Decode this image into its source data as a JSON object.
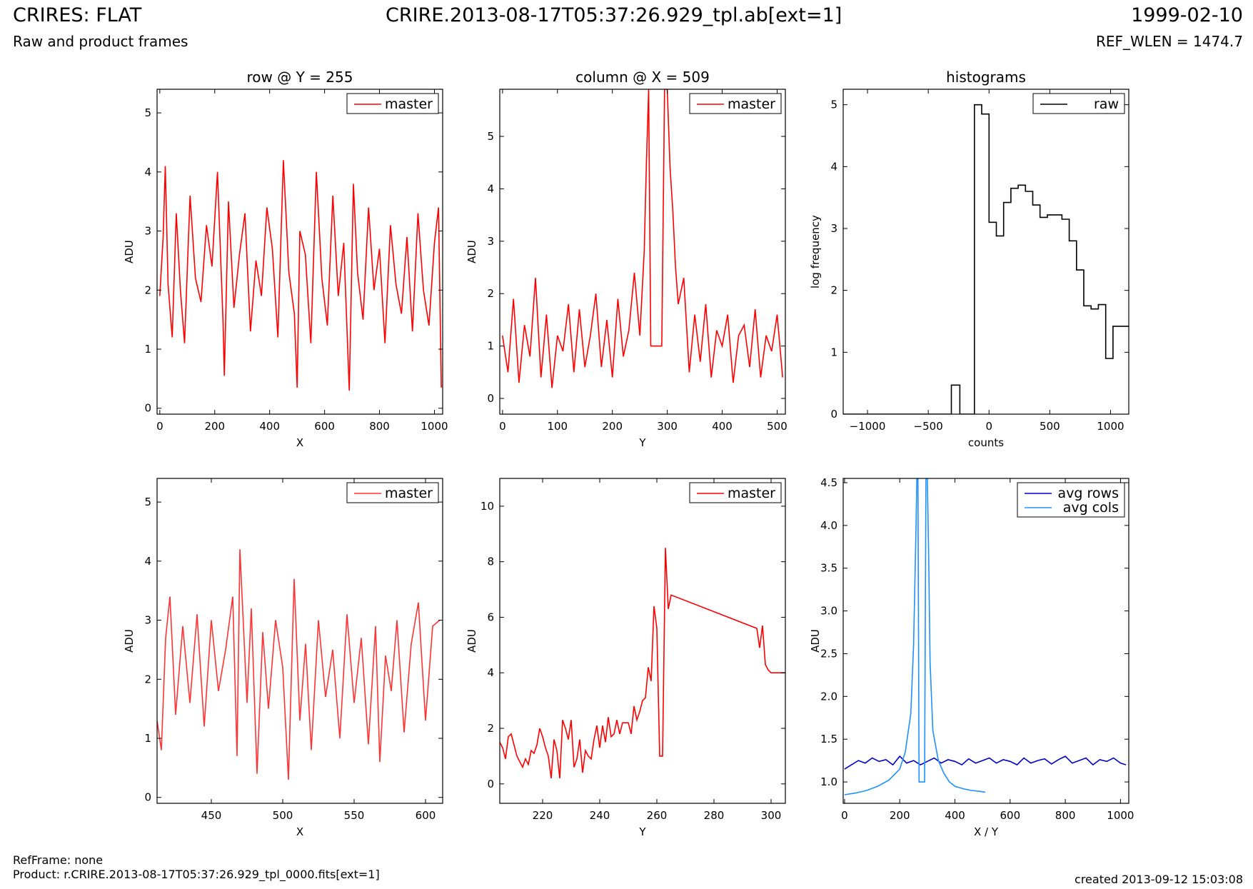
{
  "header": {
    "title_left": "CRIRES: FLAT",
    "subtitle_left": "Raw and product frames",
    "title_center": "CRIRE.2013-08-17T05:37:26.929_tpl.ab[ext=1]",
    "title_right": "1999-02-10",
    "subtitle_right": "REF_WLEN = 1474.7"
  },
  "footer": {
    "ref_frame": "RefFrame: none",
    "product": "Product: r.CRIRE.2013-08-17T05:37:26.929_tpl_0000.fits[ext=1]",
    "created": "created 2013-09-12 15:03:08"
  },
  "chart_data": [
    {
      "id": "row-full",
      "type": "line",
      "title": "row @ Y = 255",
      "xlabel": "X",
      "ylabel": "ADU",
      "xlim": [
        -10,
        1030
      ],
      "ylim": [
        -0.1,
        5.4
      ],
      "xticks": [
        0,
        200,
        400,
        600,
        800,
        1000
      ],
      "yticks": [
        0,
        1,
        2,
        3,
        4,
        5
      ],
      "legend": "top-right",
      "series": [
        {
          "name": "master",
          "color": "#ff0000",
          "x": [
            0,
            12,
            20,
            30,
            45,
            60,
            75,
            90,
            110,
            130,
            150,
            170,
            190,
            210,
            230,
            235,
            250,
            270,
            290,
            310,
            330,
            350,
            370,
            390,
            410,
            430,
            450,
            470,
            490,
            500,
            510,
            530,
            550,
            570,
            590,
            610,
            630,
            650,
            670,
            690,
            705,
            720,
            740,
            760,
            780,
            800,
            820,
            840,
            860,
            880,
            900,
            920,
            940,
            960,
            980,
            1000,
            1015,
            1025
          ],
          "y": [
            1.9,
            2.9,
            4.1,
            2.1,
            1.2,
            3.3,
            2.0,
            1.1,
            3.6,
            2.2,
            1.8,
            3.1,
            2.4,
            4.0,
            1.5,
            0.55,
            3.5,
            1.7,
            2.6,
            3.3,
            1.3,
            2.5,
            1.9,
            3.4,
            2.7,
            1.2,
            4.2,
            2.3,
            1.6,
            0.35,
            3.0,
            2.6,
            1.1,
            4.0,
            2.2,
            1.4,
            3.6,
            1.9,
            2.8,
            0.3,
            3.8,
            2.3,
            1.5,
            3.4,
            2.0,
            2.7,
            1.1,
            3.1,
            2.1,
            1.6,
            2.9,
            1.3,
            3.3,
            2.0,
            1.4,
            2.8,
            3.4,
            0.35
          ]
        }
      ]
    },
    {
      "id": "col-full",
      "type": "line",
      "title": "column @ X = 509",
      "xlabel": "Y",
      "ylabel": "ADU",
      "xlim": [
        -5,
        515
      ],
      "ylim": [
        -0.3,
        5.9
      ],
      "xticks": [
        0,
        100,
        200,
        300,
        400,
        500
      ],
      "yticks": [
        0,
        1,
        2,
        3,
        4,
        5
      ],
      "legend": "top-right",
      "series": [
        {
          "name": "master",
          "color": "#ff0000",
          "x": [
            0,
            10,
            20,
            30,
            40,
            50,
            60,
            70,
            80,
            90,
            100,
            110,
            120,
            130,
            140,
            150,
            160,
            170,
            180,
            190,
            200,
            210,
            220,
            230,
            240,
            250,
            258,
            262,
            266,
            270,
            275,
            280,
            285,
            290,
            295,
            300,
            305,
            310,
            315,
            320,
            330,
            340,
            350,
            360,
            370,
            380,
            390,
            400,
            410,
            420,
            430,
            440,
            450,
            460,
            470,
            480,
            490,
            500,
            510
          ],
          "y": [
            1.2,
            0.5,
            1.9,
            0.3,
            1.4,
            0.8,
            2.3,
            0.4,
            1.6,
            0.2,
            1.2,
            0.9,
            1.8,
            0.5,
            1.7,
            0.6,
            1.2,
            2.0,
            0.6,
            1.5,
            0.4,
            1.9,
            0.8,
            1.3,
            2.4,
            1.2,
            2.8,
            4.5,
            5.9,
            1.0,
            1.0,
            1.0,
            1.0,
            1.0,
            5.9,
            5.9,
            4.4,
            3.6,
            2.5,
            1.8,
            2.3,
            0.5,
            1.6,
            0.7,
            1.8,
            0.4,
            1.3,
            1.0,
            1.6,
            0.3,
            1.2,
            1.4,
            0.6,
            1.7,
            0.4,
            1.2,
            0.9,
            1.6,
            0.4
          ]
        }
      ]
    },
    {
      "id": "histograms",
      "type": "line",
      "title": "histograms",
      "xlabel": "counts",
      "ylabel": "log frequency",
      "xlim": [
        -1200,
        1150
      ],
      "ylim": [
        0,
        5.25
      ],
      "xticks": [
        -1000,
        -500,
        0,
        500,
        1000
      ],
      "yticks": [
        0,
        1,
        2,
        3,
        4,
        5
      ],
      "legend": "top-right",
      "series": [
        {
          "name": "raw",
          "color": "#000000",
          "x": [
            -1200,
            -310,
            -310,
            -240,
            -240,
            -120,
            -120,
            -60,
            -60,
            0,
            0,
            60,
            60,
            120,
            120,
            180,
            180,
            240,
            240,
            300,
            300,
            360,
            360,
            420,
            420,
            480,
            480,
            540,
            540,
            600,
            600,
            660,
            660,
            720,
            720,
            780,
            780,
            840,
            840,
            900,
            900,
            960,
            960,
            1020,
            1020,
            1080,
            1080,
            1150
          ],
          "y": [
            0,
            0,
            0.47,
            0.47,
            0,
            0,
            5.0,
            5.0,
            4.85,
            4.85,
            3.1,
            3.1,
            2.88,
            2.88,
            3.42,
            3.42,
            3.65,
            3.65,
            3.7,
            3.7,
            3.6,
            3.6,
            3.38,
            3.38,
            3.18,
            3.18,
            3.22,
            3.22,
            3.22,
            3.22,
            3.15,
            3.15,
            2.8,
            2.8,
            2.33,
            2.33,
            1.75,
            1.75,
            1.7,
            1.7,
            1.77,
            1.77,
            0.9,
            0.9,
            1.42,
            1.42,
            1.42,
            1.42
          ]
        }
      ]
    },
    {
      "id": "row-zoom",
      "type": "line",
      "title": "",
      "xlabel": "X",
      "ylabel": "ADU",
      "xlim": [
        412,
        612
      ],
      "ylim": [
        -0.1,
        5.4
      ],
      "xticks": [
        450,
        500,
        550,
        600
      ],
      "yticks": [
        0,
        1,
        2,
        3,
        4,
        5
      ],
      "legend": "top-right",
      "series": [
        {
          "name": "master",
          "color": "#ff3333",
          "x": [
            412,
            415,
            418,
            421,
            425,
            430,
            435,
            440,
            445,
            450,
            455,
            460,
            465,
            468,
            470,
            475,
            478,
            482,
            486,
            490,
            495,
            500,
            504,
            508,
            512,
            516,
            520,
            525,
            530,
            535,
            540,
            545,
            550,
            555,
            560,
            565,
            568,
            572,
            576,
            580,
            585,
            590,
            595,
            600,
            605,
            610
          ],
          "y": [
            1.3,
            0.8,
            2.7,
            3.4,
            1.4,
            2.9,
            1.6,
            3.1,
            1.2,
            3.0,
            1.8,
            2.5,
            3.4,
            0.7,
            4.2,
            1.6,
            3.2,
            0.4,
            2.8,
            1.5,
            3.0,
            2.2,
            0.3,
            3.7,
            1.3,
            2.6,
            0.8,
            3.0,
            1.7,
            2.5,
            1.0,
            3.1,
            1.6,
            2.7,
            0.9,
            2.9,
            0.6,
            2.4,
            1.8,
            3.0,
            1.1,
            2.6,
            3.3,
            1.3,
            2.9,
            3.0
          ]
        }
      ]
    },
    {
      "id": "col-zoom",
      "type": "line",
      "title": "",
      "xlabel": "Y",
      "ylabel": "ADU",
      "xlim": [
        205,
        305
      ],
      "ylim": [
        -0.7,
        11
      ],
      "xticks": [
        220,
        240,
        260,
        280,
        300
      ],
      "yticks": [
        0,
        2,
        4,
        6,
        8,
        10
      ],
      "legend": "top-right",
      "series": [
        {
          "name": "master",
          "color": "#ff0000",
          "x": [
            205,
            206,
            207,
            208,
            209,
            210,
            211,
            212,
            213,
            214,
            215,
            216,
            217,
            218,
            219,
            220,
            221,
            222,
            223,
            224,
            225,
            226,
            227,
            228,
            229,
            230,
            231,
            232,
            233,
            234,
            235,
            236,
            237,
            238,
            239,
            240,
            241,
            242,
            243,
            244,
            245,
            246,
            247,
            248,
            249,
            250,
            251,
            252,
            253,
            254,
            255,
            256,
            257,
            258,
            259,
            260,
            261,
            262,
            263,
            264,
            265,
            295,
            296,
            297,
            298,
            299,
            300,
            301,
            302,
            303,
            304,
            305
          ],
          "y": [
            1.5,
            1.3,
            0.9,
            1.7,
            1.8,
            1.4,
            1.0,
            0.8,
            0.6,
            0.9,
            0.7,
            1.2,
            1.1,
            1.4,
            2.0,
            1.7,
            1.3,
            1.0,
            0.2,
            1.6,
            1.2,
            0.2,
            2.3,
            2.0,
            1.6,
            2.3,
            0.6,
            0.9,
            1.6,
            0.4,
            1.2,
            1.0,
            0.9,
            1.6,
            2.1,
            1.3,
            2.1,
            1.5,
            2.4,
            1.7,
            1.8,
            2.3,
            1.8,
            2.2,
            2.2,
            2.2,
            1.8,
            2.8,
            2.3,
            2.6,
            3.0,
            3.1,
            4.2,
            3.7,
            6.4,
            5.6,
            1.0,
            1.0,
            8.5,
            6.3,
            6.8,
            5.6,
            4.9,
            5.7,
            4.3,
            4.1,
            4.0,
            4.0,
            4.0,
            4.0,
            4.0,
            4.0
          ]
        }
      ]
    },
    {
      "id": "averages",
      "type": "line",
      "title": "",
      "xlabel": "X / Y",
      "ylabel": "ADU",
      "xlim": [
        -5,
        1030
      ],
      "ylim": [
        0.75,
        4.55
      ],
      "xticks": [
        0,
        200,
        400,
        600,
        800,
        1000
      ],
      "yticks": [
        1.0,
        1.5,
        2.0,
        2.5,
        3.0,
        3.5,
        4.0,
        4.5
      ],
      "legend": "top-right",
      "series": [
        {
          "name": "avg rows",
          "color": "#0000cc",
          "x": [
            0,
            25,
            50,
            75,
            100,
            125,
            150,
            175,
            200,
            225,
            250,
            275,
            300,
            325,
            350,
            375,
            400,
            425,
            450,
            475,
            500,
            525,
            550,
            575,
            600,
            625,
            650,
            675,
            700,
            725,
            750,
            775,
            800,
            825,
            850,
            875,
            900,
            925,
            950,
            975,
            1000,
            1020
          ],
          "y": [
            1.15,
            1.2,
            1.25,
            1.22,
            1.28,
            1.24,
            1.26,
            1.2,
            1.3,
            1.22,
            1.25,
            1.2,
            1.24,
            1.28,
            1.22,
            1.26,
            1.24,
            1.2,
            1.27,
            1.22,
            1.25,
            1.28,
            1.22,
            1.26,
            1.24,
            1.2,
            1.28,
            1.22,
            1.25,
            1.27,
            1.21,
            1.26,
            1.3,
            1.22,
            1.25,
            1.28,
            1.2,
            1.26,
            1.24,
            1.28,
            1.22,
            1.2
          ]
        },
        {
          "name": "avg cols",
          "color": "#1e90ff",
          "x": [
            0,
            40,
            80,
            120,
            160,
            200,
            220,
            240,
            250,
            258,
            262,
            266,
            270,
            275,
            280,
            285,
            290,
            295,
            300,
            305,
            310,
            320,
            340,
            360,
            380,
            400,
            430,
            460,
            490,
            510
          ],
          "y": [
            0.85,
            0.87,
            0.9,
            0.95,
            1.02,
            1.15,
            1.35,
            1.8,
            2.6,
            3.8,
            4.55,
            4.55,
            1.0,
            1.0,
            1.0,
            1.0,
            1.0,
            4.55,
            4.55,
            3.6,
            2.4,
            1.6,
            1.25,
            1.1,
            1.0,
            0.95,
            0.92,
            0.9,
            0.89,
            0.88
          ]
        }
      ]
    }
  ]
}
